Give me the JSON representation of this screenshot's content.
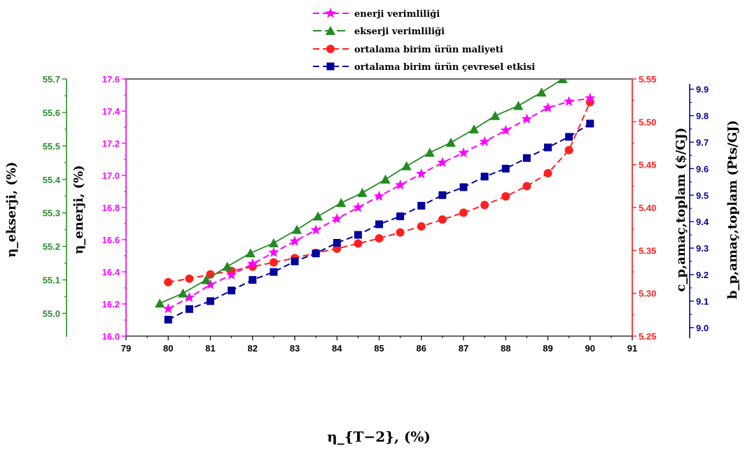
{
  "colors": {
    "enerji": "#ff00ff",
    "ekserji": "#228b22",
    "maliyet": "#ff2020",
    "cevresel": "#00009c",
    "axis_ekserji": "#2e8b2e",
    "axis_enerji": "#ff00ff",
    "axis_maliyet": "#ff2020",
    "axis_cevresel": "#000099"
  },
  "chart_data": {
    "type": "line",
    "xlabel": "η_{T−2}, (%)",
    "xlim": [
      79,
      91
    ],
    "xticks": [
      "79",
      "80",
      "81",
      "82",
      "83",
      "84",
      "85",
      "86",
      "87",
      "88",
      "89",
      "90",
      "91"
    ],
    "axes": {
      "ekserji": {
        "label": "η_ekserji, (%)",
        "ylim": [
          54.93,
          55.7
        ],
        "ticks": [
          "55.0",
          "55.1",
          "55.2",
          "55.3",
          "55.4",
          "55.5",
          "55.6",
          "55.7"
        ]
      },
      "enerji": {
        "label": "η_enerji, (%)",
        "ylim": [
          16.0,
          17.6
        ],
        "ticks": [
          "16.0",
          "16.2",
          "16.4",
          "16.6",
          "16.8",
          "17.0",
          "17.2",
          "17.4",
          "17.6"
        ]
      },
      "maliyet": {
        "label": "c_p,amaç,toplam ($/GJ)",
        "ylim": [
          5.25,
          5.55
        ],
        "ticks": [
          "5.25",
          "5.30",
          "5.35",
          "5.40",
          "5.45",
          "5.50",
          "5.55"
        ]
      },
      "cevresel": {
        "label": "b_p,amaç,toplam (Pts/GJ)",
        "ylim": [
          8.96,
          9.92
        ],
        "ticks": [
          "9.0",
          "9.1",
          "9.2",
          "9.3",
          "9.4",
          "9.5",
          "9.6",
          "9.7",
          "9.8",
          "9.9"
        ]
      }
    },
    "series": [
      {
        "name": "enerji verimliliği",
        "axis": "enerji",
        "marker": "star",
        "x": [
          80.0,
          80.5,
          81.0,
          81.5,
          82.0,
          82.5,
          83.0,
          83.5,
          84.0,
          84.5,
          85.0,
          85.5,
          86.0,
          86.5,
          87.0,
          87.5,
          88.0,
          88.5,
          89.0,
          89.5,
          90.0
        ],
        "values": [
          16.17,
          16.24,
          16.32,
          16.38,
          16.45,
          16.52,
          16.59,
          16.66,
          16.73,
          16.8,
          16.87,
          16.94,
          17.01,
          17.08,
          17.14,
          17.21,
          17.28,
          17.35,
          17.42,
          17.46,
          17.48
        ]
      },
      {
        "name": "ekserji verimliliği",
        "axis": "ekserji",
        "marker": "triangle",
        "x": [
          79.8,
          80.35,
          80.9,
          81.4,
          81.95,
          82.5,
          83.05,
          83.55,
          84.1,
          84.6,
          85.15,
          85.65,
          86.2,
          86.7,
          87.25,
          87.75,
          88.3,
          88.85,
          89.35,
          89.9
        ],
        "values": [
          55.03,
          55.06,
          55.1,
          55.14,
          55.18,
          55.21,
          55.25,
          55.29,
          55.33,
          55.36,
          55.4,
          55.44,
          55.48,
          55.51,
          55.55,
          55.59,
          55.62,
          55.66,
          55.7,
          55.73
        ]
      },
      {
        "name": "ortalama birim ürün maliyeti",
        "axis": "maliyet",
        "marker": "circle",
        "x": [
          80.0,
          80.5,
          81.0,
          81.5,
          82.0,
          82.5,
          83.0,
          83.5,
          84.0,
          84.5,
          85.0,
          85.5,
          86.0,
          86.5,
          87.0,
          87.5,
          88.0,
          88.5,
          89.0,
          89.5,
          90.0
        ],
        "values": [
          5.313,
          5.317,
          5.322,
          5.326,
          5.331,
          5.336,
          5.341,
          5.347,
          5.352,
          5.358,
          5.364,
          5.371,
          5.378,
          5.386,
          5.394,
          5.403,
          5.413,
          5.425,
          5.44,
          5.467,
          5.523
        ]
      },
      {
        "name": "ortalama birim ürün çevresel etkisi",
        "axis": "cevresel",
        "marker": "square",
        "x": [
          80.0,
          80.5,
          81.0,
          81.5,
          82.0,
          82.5,
          83.0,
          83.5,
          84.0,
          84.5,
          85.0,
          85.5,
          86.0,
          86.5,
          87.0,
          87.5,
          88.0,
          88.5,
          89.0,
          89.5,
          90.0
        ],
        "values": [
          9.03,
          9.07,
          9.1,
          9.14,
          9.18,
          9.21,
          9.25,
          9.28,
          9.32,
          9.35,
          9.39,
          9.42,
          9.46,
          9.5,
          9.53,
          9.57,
          9.6,
          9.64,
          9.68,
          9.72,
          9.77
        ]
      }
    ]
  }
}
